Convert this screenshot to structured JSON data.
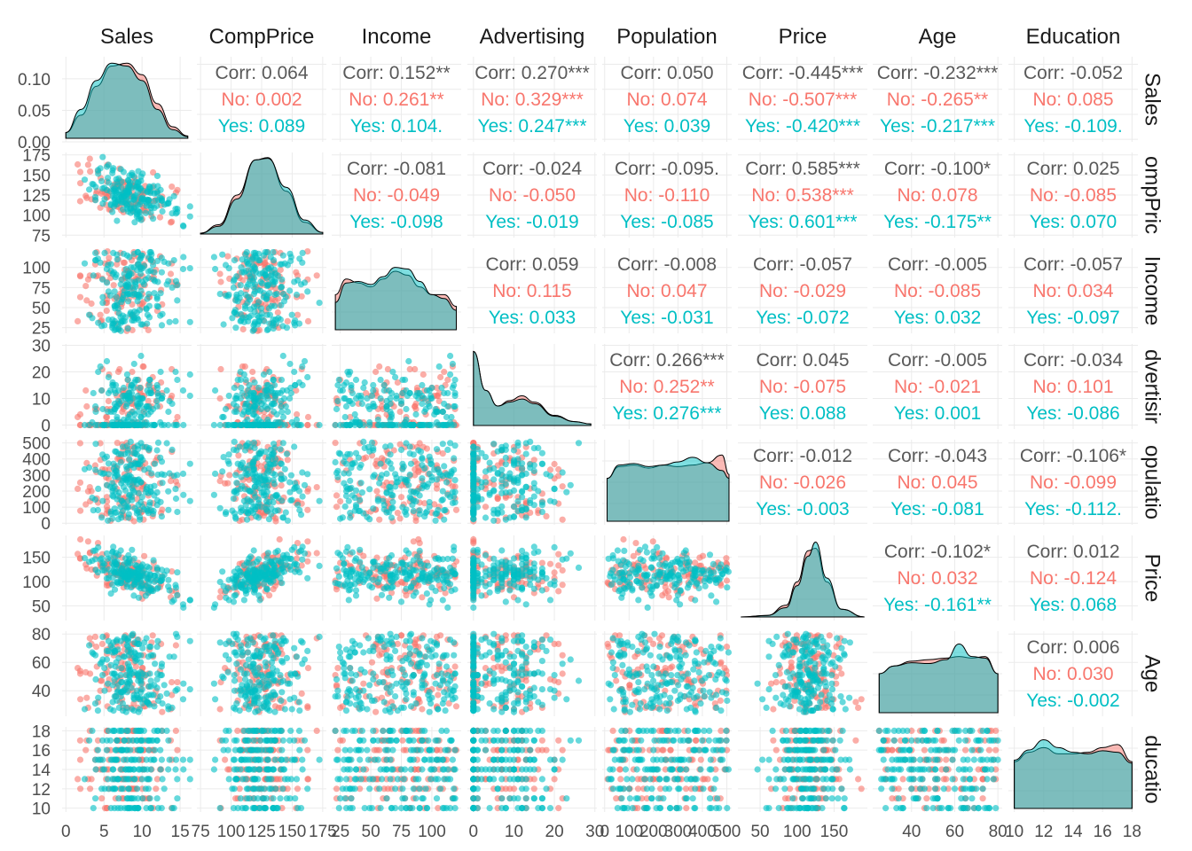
{
  "chart_data": {
    "type": "scatter",
    "colors": {
      "No": "#F8766D",
      "Yes": "#00BFC4",
      "Corr": "#595959"
    },
    "variables": [
      {
        "name": "Sales",
        "label": "Sales",
        "right_label": "Sales",
        "range": [
          -0.5,
          16.5
        ],
        "ticks": [
          0,
          5,
          10,
          15
        ],
        "tick_labels": [
          "0",
          "5",
          "10",
          "15"
        ]
      },
      {
        "name": "CompPrice",
        "label": "CompPrice",
        "right_label": "ompPric",
        "range": [
          72,
          178
        ],
        "ticks": [
          75,
          100,
          125,
          150,
          175
        ],
        "tick_labels": [
          "75",
          "100",
          "125",
          "150",
          "175"
        ]
      },
      {
        "name": "Income",
        "label": "Income",
        "right_label": "Income",
        "range": [
          18,
          124
        ],
        "ticks": [
          25,
          50,
          75,
          100
        ],
        "tick_labels": [
          "25",
          "50",
          "75",
          "100"
        ]
      },
      {
        "name": "Advertising",
        "label": "Advertising",
        "right_label": "dvertisir",
        "range": [
          -1.5,
          30.5
        ],
        "ticks": [
          0,
          10,
          20,
          30
        ],
        "tick_labels": [
          "0",
          "10",
          "20",
          "30"
        ]
      },
      {
        "name": "Population",
        "label": "Population",
        "right_label": "opulatio",
        "range": [
          -10,
          520
        ],
        "ticks": [
          0,
          100,
          200,
          300,
          400,
          500
        ],
        "tick_labels": [
          "0",
          "100",
          "200",
          "300",
          "400",
          "500"
        ]
      },
      {
        "name": "Price",
        "label": "Price",
        "right_label": "Price",
        "range": [
          20,
          195
        ],
        "ticks": [
          50,
          100,
          150
        ],
        "tick_labels": [
          "50",
          "100",
          "150"
        ]
      },
      {
        "name": "Age",
        "label": "Age",
        "right_label": "Age",
        "range": [
          22,
          82
        ],
        "ticks": [
          40,
          60,
          80
        ],
        "tick_labels": [
          "40",
          "60",
          "80"
        ]
      },
      {
        "name": "Education",
        "label": "Education",
        "right_label": "ducatio",
        "range": [
          9.6,
          18.4
        ],
        "ticks": [
          10,
          12,
          14,
          16,
          18
        ],
        "tick_labels": [
          "10",
          "12",
          "14",
          "16",
          "18"
        ]
      }
    ],
    "sales_density_ticks": [
      "0.00",
      "0.05",
      "0.10"
    ],
    "sales_density_tick_values": [
      0.0,
      0.05,
      0.1
    ],
    "sales_density_max": 0.135,
    "correlations": [
      {
        "row": 0,
        "col": 1,
        "corr": "Corr: 0.064",
        "no": "No: 0.002",
        "yes": "Yes: 0.089"
      },
      {
        "row": 0,
        "col": 2,
        "corr": "Corr: 0.152**",
        "no": "No: 0.261**",
        "yes": "Yes: 0.104."
      },
      {
        "row": 0,
        "col": 3,
        "corr": "Corr: 0.270***",
        "no": "No: 0.329***",
        "yes": "Yes: 0.247***"
      },
      {
        "row": 0,
        "col": 4,
        "corr": "Corr: 0.050",
        "no": "No: 0.074",
        "yes": "Yes: 0.039"
      },
      {
        "row": 0,
        "col": 5,
        "corr": "Corr: -0.445***",
        "no": "No: -0.507***",
        "yes": "Yes: -0.420***"
      },
      {
        "row": 0,
        "col": 6,
        "corr": "Corr: -0.232***",
        "no": "No: -0.265**",
        "yes": "Yes: -0.217***"
      },
      {
        "row": 0,
        "col": 7,
        "corr": "Corr: -0.052",
        "no": "No: 0.085",
        "yes": "Yes: -0.109."
      },
      {
        "row": 1,
        "col": 2,
        "corr": "Corr: -0.081",
        "no": "No: -0.049",
        "yes": "Yes: -0.098"
      },
      {
        "row": 1,
        "col": 3,
        "corr": "Corr: -0.024",
        "no": "No: -0.050",
        "yes": "Yes: -0.019"
      },
      {
        "row": 1,
        "col": 4,
        "corr": "Corr: -0.095.",
        "no": "No: -0.110",
        "yes": "Yes: -0.085"
      },
      {
        "row": 1,
        "col": 5,
        "corr": "Corr: 0.585***",
        "no": "No: 0.538***",
        "yes": "Yes: 0.601***"
      },
      {
        "row": 1,
        "col": 6,
        "corr": "Corr: -0.100*",
        "no": "No: 0.078",
        "yes": "Yes: -0.175**"
      },
      {
        "row": 1,
        "col": 7,
        "corr": "Corr: 0.025",
        "no": "No: -0.085",
        "yes": "Yes: 0.070"
      },
      {
        "row": 2,
        "col": 3,
        "corr": "Corr: 0.059",
        "no": "No: 0.115",
        "yes": "Yes: 0.033"
      },
      {
        "row": 2,
        "col": 4,
        "corr": "Corr: -0.008",
        "no": "No: 0.047",
        "yes": "Yes: -0.031"
      },
      {
        "row": 2,
        "col": 5,
        "corr": "Corr: -0.057",
        "no": "No: -0.029",
        "yes": "Yes: -0.072"
      },
      {
        "row": 2,
        "col": 6,
        "corr": "Corr: -0.005",
        "no": "No: -0.085",
        "yes": "Yes: 0.032"
      },
      {
        "row": 2,
        "col": 7,
        "corr": "Corr: -0.057",
        "no": "No: 0.034",
        "yes": "Yes: -0.097"
      },
      {
        "row": 3,
        "col": 4,
        "corr": "Corr: 0.266***",
        "no": "No: 0.252**",
        "yes": "Yes: 0.276***"
      },
      {
        "row": 3,
        "col": 5,
        "corr": "Corr: 0.045",
        "no": "No: -0.075",
        "yes": "Yes: 0.088"
      },
      {
        "row": 3,
        "col": 6,
        "corr": "Corr: -0.005",
        "no": "No: -0.021",
        "yes": "Yes: 0.001"
      },
      {
        "row": 3,
        "col": 7,
        "corr": "Corr: -0.034",
        "no": "No: 0.101",
        "yes": "Yes: -0.086"
      },
      {
        "row": 4,
        "col": 5,
        "corr": "Corr: -0.012",
        "no": "No: -0.026",
        "yes": "Yes: -0.003"
      },
      {
        "row": 4,
        "col": 6,
        "corr": "Corr: -0.043",
        "no": "No: 0.045",
        "yes": "Yes: -0.081"
      },
      {
        "row": 4,
        "col": 7,
        "corr": "Corr: -0.106*",
        "no": "No: -0.099",
        "yes": "Yes: -0.112."
      },
      {
        "row": 5,
        "col": 6,
        "corr": "Corr: -0.102*",
        "no": "No: 0.032",
        "yes": "Yes: -0.161**"
      },
      {
        "row": 5,
        "col": 7,
        "corr": "Corr: 0.012",
        "no": "No: -0.124",
        "yes": "Yes: 0.068"
      },
      {
        "row": 6,
        "col": 7,
        "corr": "Corr: 0.006",
        "no": "No: 0.030",
        "yes": "Yes: -0.002"
      }
    ],
    "densities": [
      {
        "var": "Sales",
        "no": [
          [
            0,
            0.01
          ],
          [
            2,
            0.04
          ],
          [
            4,
            0.09
          ],
          [
            6,
            0.125
          ],
          [
            8,
            0.13
          ],
          [
            10,
            0.11
          ],
          [
            12,
            0.06
          ],
          [
            14,
            0.02
          ],
          [
            16,
            0.004
          ]
        ],
        "yes": [
          [
            0,
            0.01
          ],
          [
            2,
            0.05
          ],
          [
            4,
            0.1
          ],
          [
            6,
            0.13
          ],
          [
            8,
            0.125
          ],
          [
            10,
            0.1
          ],
          [
            12,
            0.05
          ],
          [
            14,
            0.015
          ],
          [
            16,
            0.003
          ]
        ]
      },
      {
        "var": "CompPrice",
        "no": [
          [
            75,
            0.01
          ],
          [
            90,
            0.12
          ],
          [
            105,
            0.5
          ],
          [
            120,
            0.95
          ],
          [
            130,
            0.98
          ],
          [
            145,
            0.55
          ],
          [
            160,
            0.15
          ],
          [
            175,
            0.02
          ]
        ],
        "yes": [
          [
            75,
            0.01
          ],
          [
            90,
            0.1
          ],
          [
            105,
            0.45
          ],
          [
            120,
            0.95
          ],
          [
            130,
            0.97
          ],
          [
            145,
            0.6
          ],
          [
            160,
            0.18
          ],
          [
            175,
            0.02
          ]
        ]
      },
      {
        "var": "Income",
        "no": [
          [
            21,
            0.45
          ],
          [
            30,
            0.65
          ],
          [
            40,
            0.6
          ],
          [
            50,
            0.55
          ],
          [
            60,
            0.65
          ],
          [
            70,
            0.75
          ],
          [
            80,
            0.7
          ],
          [
            90,
            0.55
          ],
          [
            100,
            0.45
          ],
          [
            110,
            0.45
          ],
          [
            120,
            0.3
          ]
        ],
        "yes": [
          [
            21,
            0.35
          ],
          [
            30,
            0.6
          ],
          [
            40,
            0.62
          ],
          [
            50,
            0.58
          ],
          [
            60,
            0.68
          ],
          [
            70,
            0.8
          ],
          [
            80,
            0.78
          ],
          [
            90,
            0.62
          ],
          [
            100,
            0.45
          ],
          [
            110,
            0.4
          ],
          [
            120,
            0.25
          ]
        ]
      },
      {
        "var": "Advertising",
        "no": [
          [
            0,
            0.95
          ],
          [
            3,
            0.45
          ],
          [
            6,
            0.25
          ],
          [
            9,
            0.32
          ],
          [
            12,
            0.38
          ],
          [
            15,
            0.3
          ],
          [
            20,
            0.13
          ],
          [
            25,
            0.05
          ],
          [
            29,
            0.02
          ]
        ],
        "yes": [
          [
            0,
            0.95
          ],
          [
            3,
            0.45
          ],
          [
            6,
            0.25
          ],
          [
            9,
            0.3
          ],
          [
            12,
            0.34
          ],
          [
            15,
            0.28
          ],
          [
            20,
            0.12
          ],
          [
            25,
            0.05
          ],
          [
            29,
            0.02
          ]
        ]
      },
      {
        "var": "Population",
        "no": [
          [
            10,
            0.55
          ],
          [
            60,
            0.7
          ],
          [
            120,
            0.72
          ],
          [
            180,
            0.68
          ],
          [
            240,
            0.72
          ],
          [
            300,
            0.7
          ],
          [
            360,
            0.72
          ],
          [
            420,
            0.75
          ],
          [
            480,
            0.85
          ],
          [
            509,
            0.6
          ]
        ],
        "yes": [
          [
            10,
            0.55
          ],
          [
            60,
            0.72
          ],
          [
            120,
            0.74
          ],
          [
            180,
            0.7
          ],
          [
            240,
            0.72
          ],
          [
            300,
            0.76
          ],
          [
            360,
            0.82
          ],
          [
            420,
            0.75
          ],
          [
            480,
            0.65
          ],
          [
            509,
            0.55
          ]
        ]
      },
      {
        "var": "Price",
        "no": [
          [
            24,
            0.0
          ],
          [
            60,
            0.02
          ],
          [
            85,
            0.15
          ],
          [
            100,
            0.45
          ],
          [
            115,
            0.85
          ],
          [
            125,
            0.88
          ],
          [
            140,
            0.45
          ],
          [
            160,
            0.1
          ],
          [
            191,
            0.0
          ]
        ],
        "yes": [
          [
            24,
            0.0
          ],
          [
            60,
            0.02
          ],
          [
            85,
            0.12
          ],
          [
            100,
            0.4
          ],
          [
            115,
            0.78
          ],
          [
            125,
            0.96
          ],
          [
            140,
            0.5
          ],
          [
            160,
            0.1
          ],
          [
            191,
            0.0
          ]
        ]
      },
      {
        "var": "Age",
        "no": [
          [
            25,
            0.5
          ],
          [
            32,
            0.6
          ],
          [
            40,
            0.66
          ],
          [
            48,
            0.68
          ],
          [
            56,
            0.7
          ],
          [
            62,
            0.72
          ],
          [
            68,
            0.7
          ],
          [
            74,
            0.72
          ],
          [
            80,
            0.5
          ]
        ],
        "yes": [
          [
            25,
            0.5
          ],
          [
            32,
            0.6
          ],
          [
            40,
            0.64
          ],
          [
            48,
            0.63
          ],
          [
            56,
            0.68
          ],
          [
            62,
            0.88
          ],
          [
            68,
            0.72
          ],
          [
            74,
            0.7
          ],
          [
            80,
            0.5
          ]
        ]
      },
      {
        "var": "Education",
        "no": [
          [
            10,
            0.6
          ],
          [
            11,
            0.72
          ],
          [
            12,
            0.78
          ],
          [
            13,
            0.7
          ],
          [
            14,
            0.7
          ],
          [
            15,
            0.72
          ],
          [
            16,
            0.78
          ],
          [
            17,
            0.82
          ],
          [
            18,
            0.6
          ]
        ],
        "yes": [
          [
            10,
            0.62
          ],
          [
            11,
            0.75
          ],
          [
            12,
            0.88
          ],
          [
            13,
            0.78
          ],
          [
            14,
            0.72
          ],
          [
            15,
            0.7
          ],
          [
            16,
            0.74
          ],
          [
            17,
            0.72
          ],
          [
            18,
            0.58
          ]
        ]
      }
    ]
  }
}
